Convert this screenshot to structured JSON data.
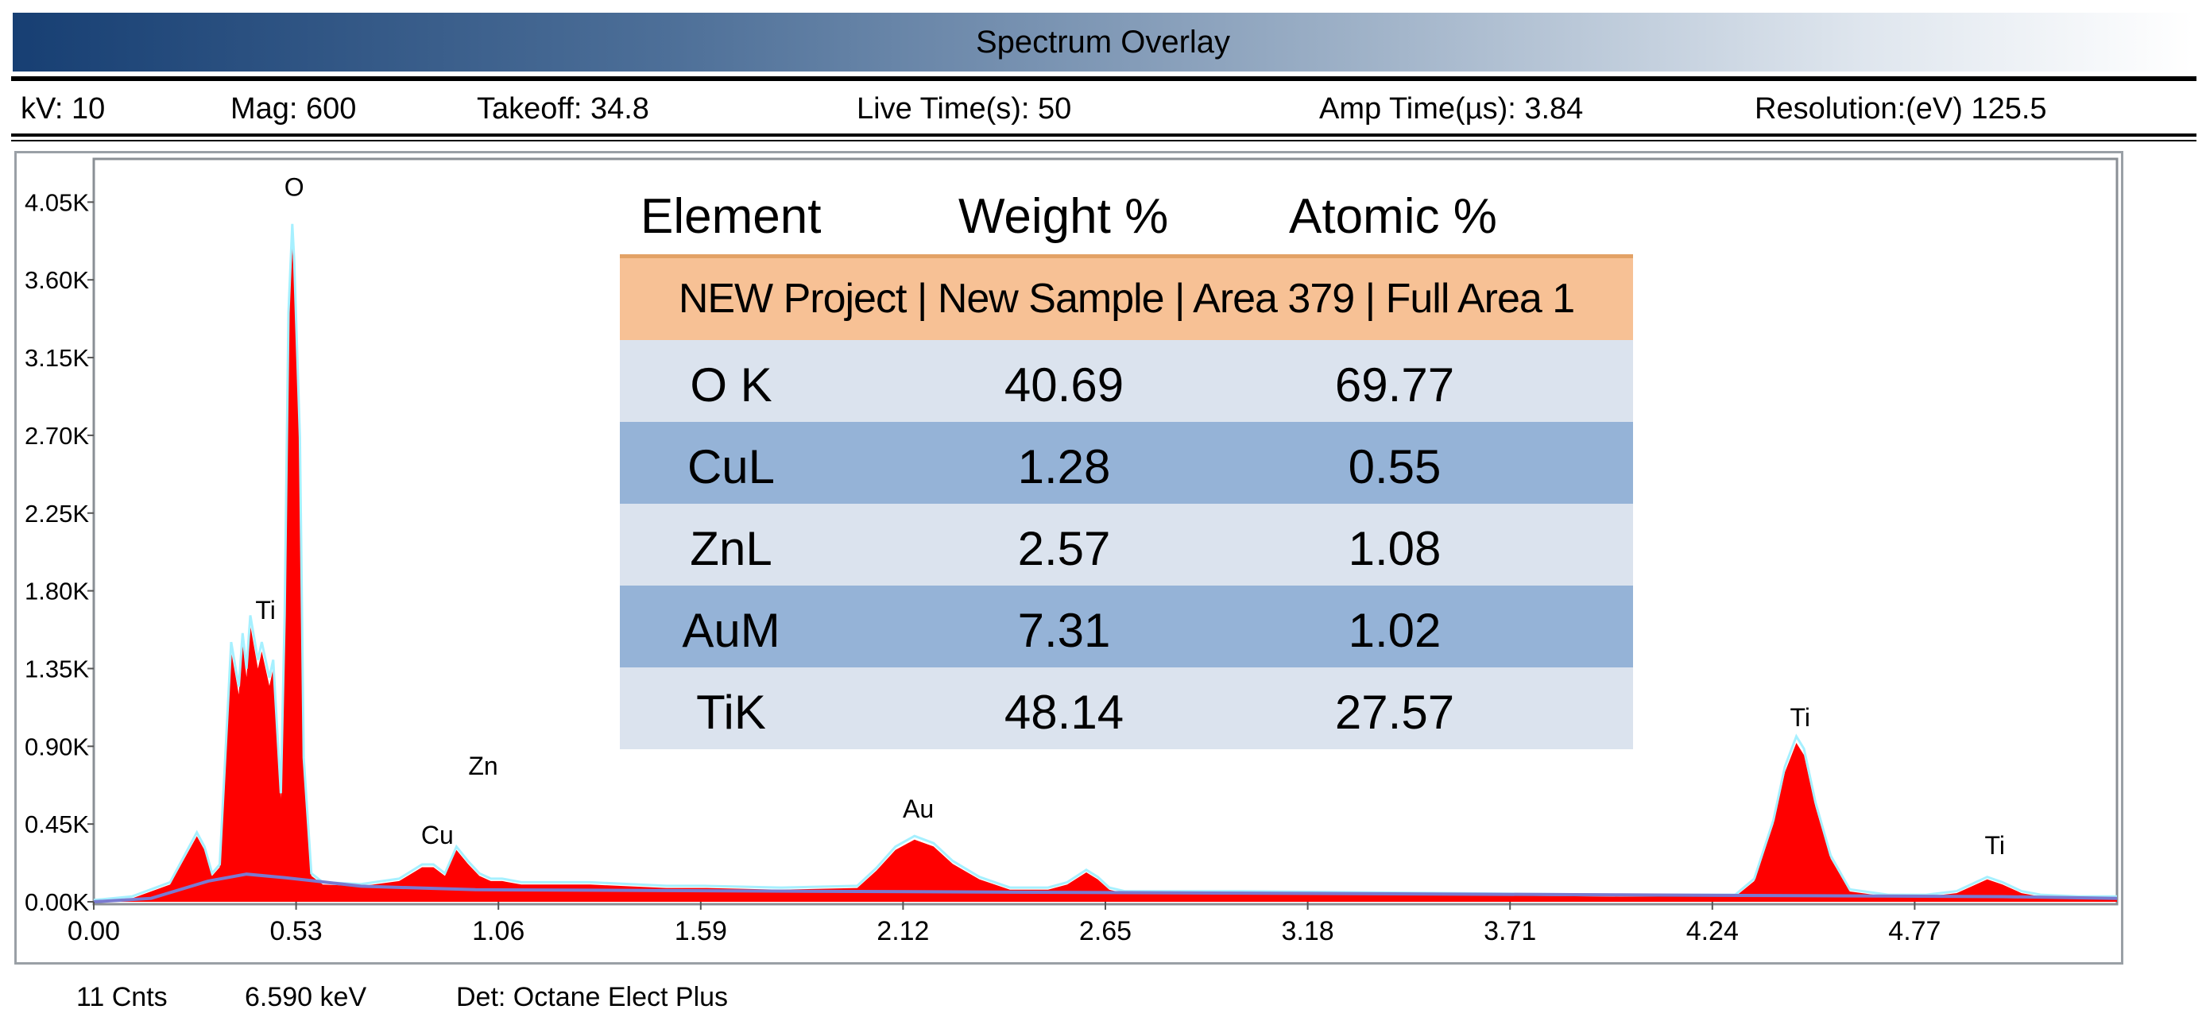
{
  "window": {
    "title": "Spectrum Overlay"
  },
  "params": {
    "kv": "kV: 10",
    "mag": "Mag: 600",
    "takeoff": "Takeoff: 34.8",
    "live_time": "Live Time(s): 50",
    "amp_time": "Amp Time(µs): 3.84",
    "resolution": "Resolution:(eV) 125.5"
  },
  "footer": {
    "cnts": "11 Cnts",
    "kev": "6.590 keV",
    "detector": "Det: Octane Elect Plus"
  },
  "results_table": {
    "headers": [
      "Element",
      "Weight %",
      "Atomic %"
    ],
    "project": "NEW Project | New Sample | Area 379 | Full Area 1",
    "rows": [
      {
        "element": "O K",
        "weight": "40.69",
        "atomic": "69.77"
      },
      {
        "element": "CuL",
        "weight": "1.28",
        "atomic": "0.55"
      },
      {
        "element": "ZnL",
        "weight": "2.57",
        "atomic": "1.08"
      },
      {
        "element": "AuM",
        "weight": "7.31",
        "atomic": "1.02"
      },
      {
        "element": "TiK",
        "weight": "48.14",
        "atomic": "27.57"
      }
    ]
  },
  "chart_data": {
    "type": "area",
    "xlabel": "",
    "ylabel": "",
    "xlim": [
      0.0,
      5.3
    ],
    "ylim": [
      0,
      4.3
    ],
    "x_ticks": [
      "0.00",
      "0.53",
      "1.06",
      "1.59",
      "2.12",
      "2.65",
      "3.18",
      "3.71",
      "4.24",
      "4.77"
    ],
    "y_ticks": [
      "0.00K",
      "0.45K",
      "0.90K",
      "1.35K",
      "1.80K",
      "2.25K",
      "2.70K",
      "3.15K",
      "3.60K",
      "4.05K"
    ],
    "y_tick_values": [
      0,
      0.45,
      0.9,
      1.35,
      1.8,
      2.25,
      2.7,
      3.15,
      3.6,
      4.05
    ],
    "fill_color": "#ff0000",
    "overlay_color": "#a6f0ff",
    "background_color": "#7a7ad0",
    "series": [
      {
        "x": [
          0.0,
          0.1,
          0.2,
          0.25,
          0.27,
          0.29,
          0.31,
          0.33,
          0.36,
          0.38,
          0.39,
          0.4,
          0.41,
          0.43,
          0.44,
          0.46,
          0.47,
          0.49,
          0.5,
          0.51,
          0.52,
          0.525,
          0.54,
          0.55,
          0.57,
          0.6,
          0.7,
          0.8,
          0.86,
          0.89,
          0.92,
          0.95,
          0.98,
          1.01,
          1.04,
          1.07,
          1.12,
          1.3,
          1.5,
          1.6,
          1.8,
          2.0,
          2.05,
          2.1,
          2.15,
          2.2,
          2.25,
          2.32,
          2.4,
          2.5,
          2.55,
          2.6,
          2.63,
          2.66,
          2.7,
          2.75,
          3.0,
          3.5,
          4.0,
          4.3,
          4.35,
          4.4,
          4.43,
          4.46,
          4.48,
          4.51,
          4.55,
          4.6,
          4.7,
          4.8,
          4.88,
          4.93,
          4.96,
          5.0,
          5.05,
          5.1,
          5.2,
          5.3
        ],
        "y": [
          0.0,
          0.02,
          0.1,
          0.3,
          0.38,
          0.3,
          0.15,
          0.2,
          1.45,
          1.2,
          1.5,
          1.3,
          1.6,
          1.35,
          1.45,
          1.25,
          1.35,
          0.6,
          1.6,
          3.3,
          3.8,
          3.6,
          2.6,
          0.8,
          0.15,
          0.1,
          0.09,
          0.12,
          0.2,
          0.2,
          0.15,
          0.3,
          0.22,
          0.15,
          0.12,
          0.12,
          0.1,
          0.1,
          0.08,
          0.08,
          0.07,
          0.08,
          0.18,
          0.3,
          0.36,
          0.32,
          0.22,
          0.13,
          0.07,
          0.07,
          0.1,
          0.17,
          0.13,
          0.07,
          0.05,
          0.05,
          0.05,
          0.04,
          0.03,
          0.03,
          0.12,
          0.45,
          0.75,
          0.92,
          0.85,
          0.55,
          0.25,
          0.06,
          0.03,
          0.03,
          0.05,
          0.1,
          0.13,
          0.1,
          0.05,
          0.03,
          0.02,
          0.02
        ]
      }
    ],
    "peak_labels": [
      {
        "text": "O",
        "x": 0.525,
        "y": 4.05
      },
      {
        "text": "Ti",
        "x": 0.45,
        "y": 1.6
      },
      {
        "text": "Zn",
        "x": 1.02,
        "y": 0.7
      },
      {
        "text": "Cu",
        "x": 0.9,
        "y": 0.3
      },
      {
        "text": "Au",
        "x": 2.16,
        "y": 0.45
      },
      {
        "text": "Ti",
        "x": 4.47,
        "y": 0.98
      },
      {
        "text": "Ti",
        "x": 4.98,
        "y": 0.24
      }
    ],
    "grid": false
  }
}
